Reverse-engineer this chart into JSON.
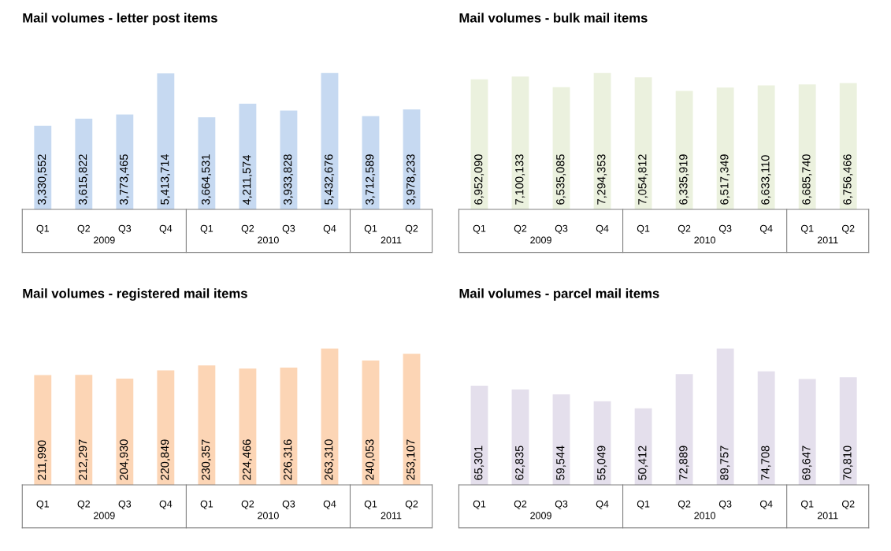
{
  "chart_data": [
    {
      "type": "bar",
      "title": "Mail volumes - letter post items",
      "categories": [
        "Q1",
        "Q2",
        "Q3",
        "Q4",
        "Q1",
        "Q2",
        "Q3",
        "Q4",
        "Q1",
        "Q2"
      ],
      "values": [
        3330552,
        3615822,
        3773465,
        5413714,
        3664531,
        4211574,
        3933828,
        5432676,
        3712589,
        3978233
      ],
      "color": "#c6d9f1",
      "value_labels": [
        "3,330,552",
        "3,615,822",
        "3,773,465",
        "5,413,714",
        "3,664,531",
        "4,211,574",
        "3,933,828",
        "5,432,676",
        "3,712,589",
        "3,978,233"
      ],
      "annotations": [
        "2009",
        "2010",
        "2011"
      ]
    },
    {
      "type": "bar",
      "title": "Mail volumes - bulk mail items",
      "categories": [
        "Q1",
        "Q2",
        "Q3",
        "Q4",
        "Q1",
        "Q2",
        "Q3",
        "Q4",
        "Q1",
        "Q2"
      ],
      "values": [
        6952090,
        7100133,
        6535085,
        7294353,
        7054812,
        6335919,
        6517349,
        6633110,
        6685740,
        6756466
      ],
      "color": "#ebf1de",
      "value_labels": [
        "6,952,090",
        "7,100,133",
        "6,535,085",
        "7,294,353",
        "7,054,812",
        "6,335,919",
        "6,517,349",
        "6,633,110",
        "6,685,740",
        "6,756,466"
      ],
      "annotations": [
        "2009",
        "2010",
        "2011"
      ]
    },
    {
      "type": "bar",
      "title": "Mail volumes - registered mail items",
      "categories": [
        "Q1",
        "Q2",
        "Q3",
        "Q4",
        "Q1",
        "Q2",
        "Q3",
        "Q4",
        "Q1",
        "Q2"
      ],
      "values": [
        211990,
        212297,
        204930,
        220849,
        230357,
        224466,
        226316,
        263310,
        240053,
        253107
      ],
      "color": "#fcd5b5",
      "value_labels": [
        "211,990",
        "212,297",
        "204,930",
        "220,849",
        "230,357",
        "224,466",
        "226,316",
        "263,310",
        "240,053",
        "253,107"
      ],
      "annotations": [
        "2009",
        "2010",
        "2011"
      ]
    },
    {
      "type": "bar",
      "title": "Mail volumes - parcel mail items",
      "categories": [
        "Q1",
        "Q2",
        "Q3",
        "Q4",
        "Q1",
        "Q2",
        "Q3",
        "Q4",
        "Q1",
        "Q2"
      ],
      "values": [
        65301,
        62835,
        59544,
        55049,
        50412,
        72889,
        89757,
        74708,
        69647,
        70810
      ],
      "color": "#e4dfec",
      "value_labels": [
        "65,301",
        "62,835",
        "59,544",
        "55,049",
        "50,412",
        "72,889",
        "89,757",
        "74,708",
        "69,647",
        "70,810"
      ],
      "annotations": [
        "2009",
        "2010",
        "2011"
      ]
    }
  ]
}
